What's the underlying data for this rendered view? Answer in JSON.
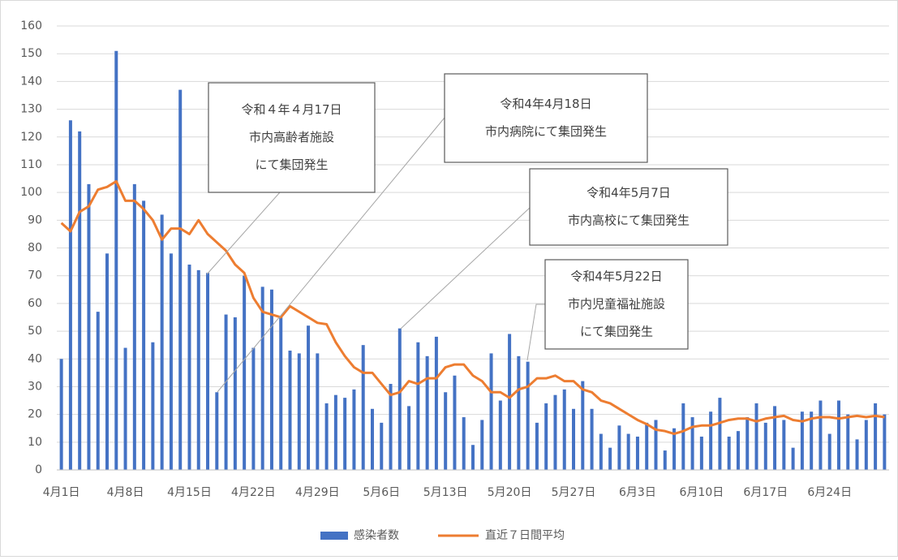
{
  "chart_data": {
    "type": "bar",
    "categories": [
      "4月1日",
      null,
      null,
      null,
      null,
      null,
      null,
      "4月8日",
      null,
      null,
      null,
      null,
      null,
      null,
      "4月15日",
      null,
      null,
      null,
      null,
      null,
      null,
      "4月22日",
      null,
      null,
      null,
      null,
      null,
      null,
      "4月29日",
      null,
      null,
      null,
      null,
      null,
      null,
      "5月6日",
      null,
      null,
      null,
      null,
      null,
      null,
      "5月13日",
      null,
      null,
      null,
      null,
      null,
      null,
      "5月20日",
      null,
      null,
      null,
      null,
      null,
      null,
      "5月27日",
      null,
      null,
      null,
      null,
      null,
      null,
      "6月3日",
      null,
      null,
      null,
      null,
      null,
      null,
      "6月10日",
      null,
      null,
      null,
      null,
      null,
      null,
      "6月17日",
      null,
      null,
      null,
      null,
      null,
      null,
      "6月24日",
      null,
      null,
      null,
      null,
      null,
      null
    ],
    "series": [
      {
        "name": "感染者数",
        "type": "bar",
        "color": "#4472c4",
        "values": [
          40,
          126,
          122,
          103,
          57,
          78,
          151,
          44,
          103,
          97,
          46,
          92,
          78,
          137,
          74,
          72,
          71,
          28,
          56,
          55,
          70,
          44,
          66,
          65,
          55,
          43,
          42,
          52,
          42,
          24,
          27,
          26,
          29,
          45,
          22,
          17,
          31,
          51,
          23,
          46,
          41,
          48,
          28,
          34,
          19,
          9,
          18,
          42,
          25,
          49,
          41,
          39,
          17,
          24,
          27,
          29,
          22,
          32,
          22,
          13,
          8,
          16,
          13,
          12,
          17,
          18,
          7,
          15,
          24,
          19,
          12,
          21,
          26,
          12,
          14,
          19,
          24,
          17,
          23,
          18,
          8,
          21,
          21,
          25,
          13,
          25,
          20,
          11,
          18,
          24,
          20
        ]
      },
      {
        "name": "直近７日間平均",
        "type": "line",
        "color": "#ed7d31",
        "values": [
          89,
          86,
          93,
          95,
          101,
          102,
          104,
          97,
          97,
          94,
          90,
          83,
          87,
          87,
          85,
          90,
          85,
          82,
          79,
          74,
          71,
          62,
          57,
          56,
          55,
          59,
          57,
          55,
          53,
          52.5,
          46,
          41,
          37,
          35,
          35,
          31,
          27,
          28,
          32,
          31,
          33,
          33,
          37,
          38,
          38,
          34,
          32,
          28,
          28,
          26,
          29,
          30,
          33,
          33,
          34,
          32,
          32,
          29,
          28,
          25,
          24,
          22,
          20,
          18,
          16.5,
          14.5,
          14,
          13,
          14,
          15.5,
          16,
          16,
          17,
          18,
          18.5,
          18.5,
          17.5,
          18.5,
          19,
          19.5,
          18,
          17.5,
          18.5,
          19,
          19,
          18.5,
          19,
          19.5,
          19,
          19.5,
          19
        ]
      }
    ],
    "ylim": [
      0,
      160
    ],
    "yticks": [
      0,
      10,
      20,
      30,
      40,
      50,
      60,
      70,
      80,
      90,
      100,
      110,
      120,
      130,
      140,
      150,
      160
    ],
    "grid": true,
    "legend": "bottom",
    "annotations": [
      {
        "lines": [
          "令和４年４月17日",
          "市内高齢者施設",
          "にて集団発生"
        ]
      },
      {
        "lines": [
          "令和4年4月18日",
          "市内病院にて集団発生"
        ]
      },
      {
        "lines": [
          "令和4年5月7日",
          "市内高校にて集団発生"
        ]
      },
      {
        "lines": [
          "令和4年5月22日",
          "市内児童福祉施設",
          "にて集団発生"
        ]
      }
    ]
  }
}
